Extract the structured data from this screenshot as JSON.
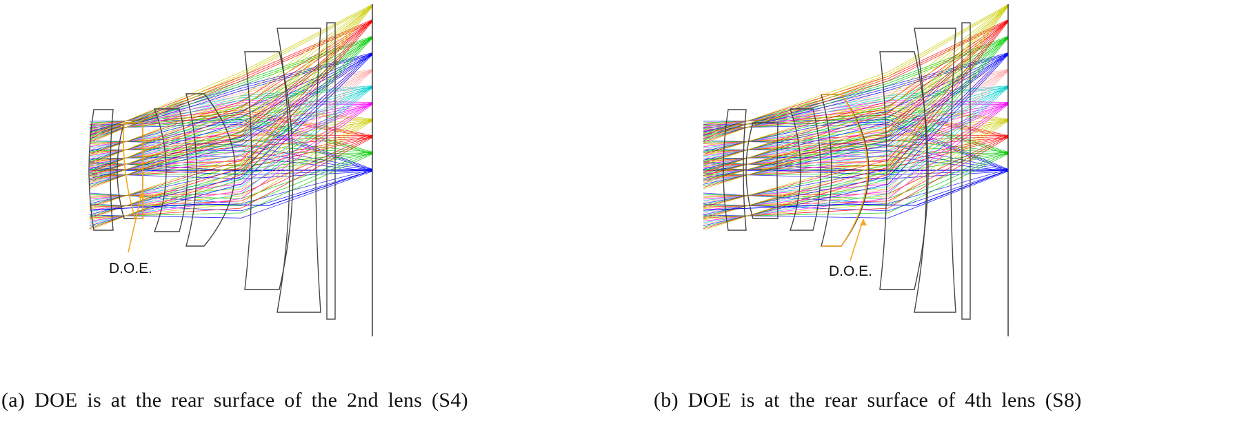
{
  "panels": [
    {
      "id": "a",
      "caption": "(a) DOE is at the rear surface of the 2nd lens (S4)",
      "doe_label": "D.O.E."
    },
    {
      "id": "b",
      "caption": "(b) DOE is at the rear surface of 4th lens (S8)",
      "doe_label": "D.O.E."
    }
  ],
  "colors": {
    "lens_outline": "#444444",
    "doe_highlight": "#f5a623",
    "ray_field_colors": [
      "#0000ff",
      "#00cc00",
      "#ff0000",
      "#cccc00",
      "#ff00ff",
      "#00cccc",
      "#ffaaaa"
    ]
  }
}
